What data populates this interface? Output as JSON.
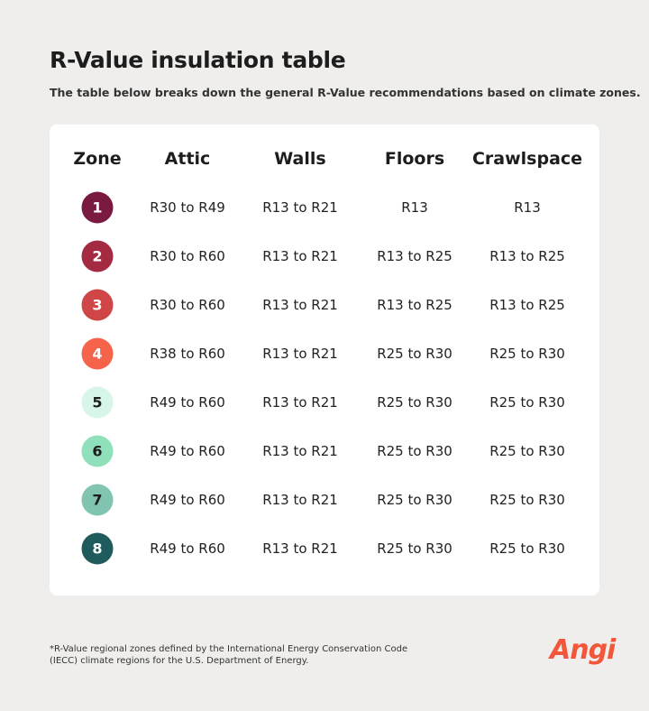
{
  "header": {
    "title": "R-Value insulation table",
    "subtitle": "The table below breaks down the general R-Value recommendations based on climate zones."
  },
  "table": {
    "columns": [
      "Zone",
      "Attic",
      "Walls",
      "Floors",
      "Crawlspace"
    ],
    "rows": [
      [
        "1",
        "R30 to R49",
        "R13 to R21",
        "R13",
        "R13"
      ],
      [
        "2",
        "R30 to R60",
        "R13 to R21",
        "R13 to R25",
        "R13 to R25"
      ],
      [
        "3",
        "R30 to R60",
        "R13 to R21",
        "R13 to R25",
        "R13 to R25"
      ],
      [
        "4",
        "R38 to R60",
        "R13 to R21",
        "R25 to R30",
        "R25 to R30"
      ],
      [
        "5",
        "R49 to R60",
        "R13 to R21",
        "R25 to R30",
        "R25 to R30"
      ],
      [
        "6",
        "R49 to R60",
        "R13 to R21",
        "R25 to R30",
        "R25 to R30"
      ],
      [
        "7",
        "R49 to R60",
        "R13 to R21",
        "R25 to R30",
        "R25 to R30"
      ],
      [
        "8",
        "R49 to R60",
        "R13 to R21",
        "R25 to R30",
        "R25 to R30"
      ]
    ]
  },
  "footnote": "*R-Value regional zones defined by the International Energy Conservation Code (IECC) climate regions for the U.S. Department of Energy.",
  "logo": "Angi"
}
